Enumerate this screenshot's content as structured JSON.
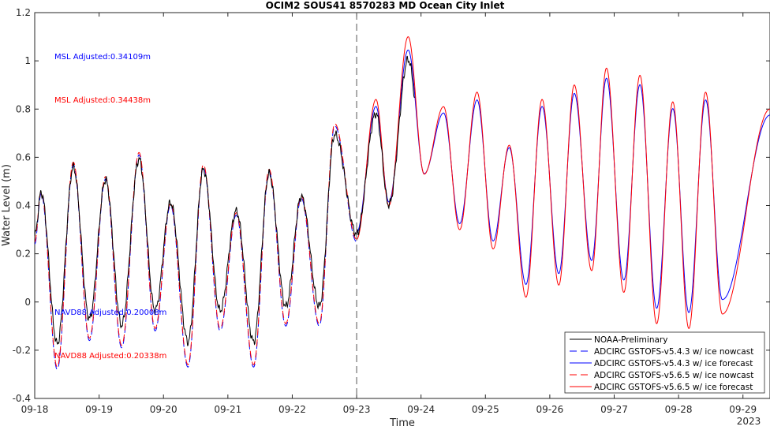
{
  "chart_data": {
    "type": "line",
    "title": "OCIM2 SOUS41 8570283 MD Ocean City Inlet",
    "xlabel": "Time",
    "ylabel": "Water Level (m)",
    "x_year_label": "2023",
    "xlim": [
      0,
      11.42
    ],
    "ylim": [
      -0.4,
      1.2
    ],
    "x_ticks": [
      0,
      1,
      2,
      3,
      4,
      5,
      6,
      7,
      8,
      9,
      10,
      11
    ],
    "x_tick_labels": [
      "09-18",
      "09-19",
      "09-20",
      "09-21",
      "09-22",
      "09-23",
      "09-24",
      "09-25",
      "09-26",
      "09-27",
      "09-28",
      "09-29"
    ],
    "y_ticks": [
      -0.4,
      -0.2,
      0,
      0.2,
      0.4,
      0.6,
      0.8,
      1,
      1.2
    ],
    "y_tick_labels": [
      "-0.4",
      "-0.2",
      "0",
      "0.2",
      "0.4",
      "0.6",
      "0.8",
      "1",
      "1.2"
    ],
    "grid": false,
    "legend_position": "bottom-right",
    "forecast_start_x": 5,
    "annotations": [
      {
        "text": "MSL Adjusted:0.34109m",
        "color": "#0000ff"
      },
      {
        "text": "MSL Adjusted:0.34438m",
        "color": "#ff0000"
      },
      {
        "text": "NAVD88 Adjusted:0.20008m",
        "color": "#0000ff"
      },
      {
        "text": "NAVD88 Adjusted:0.20338m",
        "color": "#ff0000"
      }
    ],
    "extrema": [
      [
        0.0,
        0.25
      ],
      [
        0.1,
        0.46
      ],
      [
        0.35,
        -0.27
      ],
      [
        0.6,
        0.58
      ],
      [
        0.85,
        -0.15
      ],
      [
        1.1,
        0.52
      ],
      [
        1.35,
        -0.18
      ],
      [
        1.62,
        0.62
      ],
      [
        1.87,
        -0.11
      ],
      [
        2.11,
        0.41
      ],
      [
        2.38,
        -0.26
      ],
      [
        2.62,
        0.57
      ],
      [
        2.88,
        -0.11
      ],
      [
        3.13,
        0.37
      ],
      [
        3.4,
        -0.26
      ],
      [
        3.64,
        0.55
      ],
      [
        3.9,
        -0.09
      ],
      [
        4.14,
        0.44
      ],
      [
        4.42,
        -0.09
      ],
      [
        4.66,
        0.74
      ],
      [
        5.0,
        0.26
      ],
      [
        5.3,
        0.84
      ],
      [
        5.5,
        0.4
      ],
      [
        5.8,
        1.1
      ],
      [
        6.05,
        0.53
      ],
      [
        6.35,
        0.81
      ],
      [
        6.6,
        0.3
      ],
      [
        6.87,
        0.87
      ],
      [
        7.12,
        0.22
      ],
      [
        7.37,
        0.65
      ],
      [
        7.63,
        0.02
      ],
      [
        7.88,
        0.84
      ],
      [
        8.14,
        0.07
      ],
      [
        8.38,
        0.9
      ],
      [
        8.65,
        0.13
      ],
      [
        8.88,
        0.97
      ],
      [
        9.15,
        0.04
      ],
      [
        9.4,
        0.94
      ],
      [
        9.66,
        -0.09
      ],
      [
        9.91,
        0.83
      ],
      [
        10.16,
        -0.11
      ],
      [
        10.42,
        0.87
      ],
      [
        10.68,
        -0.05
      ],
      [
        11.42,
        0.8
      ]
    ],
    "series": [
      {
        "name": "NOAA-Preliminary",
        "color": "#000000",
        "dash": "solid",
        "x_range": [
          0,
          5.9
        ],
        "amp_scale": 0.86,
        "offset": 0.01
      },
      {
        "name": "ADCIRC GSTOFS-v5.4.3 w/ ice nowcast",
        "color": "#0000ff",
        "dash": "dashed",
        "x_range": [
          0,
          5
        ],
        "amp_scale": 1.0,
        "offset": -0.01
      },
      {
        "name": "ADCIRC GSTOFS-v5.4.3 w/ ice forecast",
        "color": "#0000ff",
        "dash": "solid",
        "x_range": [
          5,
          11.42
        ],
        "amp_scale": 0.9,
        "offset": 0.02
      },
      {
        "name": "ADCIRC GSTOFS-v5.6.5 w/ ice nowcast",
        "color": "#ff0000",
        "dash": "dashed",
        "x_range": [
          0,
          5
        ],
        "amp_scale": 1.0,
        "offset": 0.0
      },
      {
        "name": "ADCIRC GSTOFS-v5.6.5 w/ ice forecast",
        "color": "#ff0000",
        "dash": "solid",
        "x_range": [
          5,
          11.42
        ],
        "amp_scale": 1.0,
        "offset": 0.0
      }
    ]
  }
}
